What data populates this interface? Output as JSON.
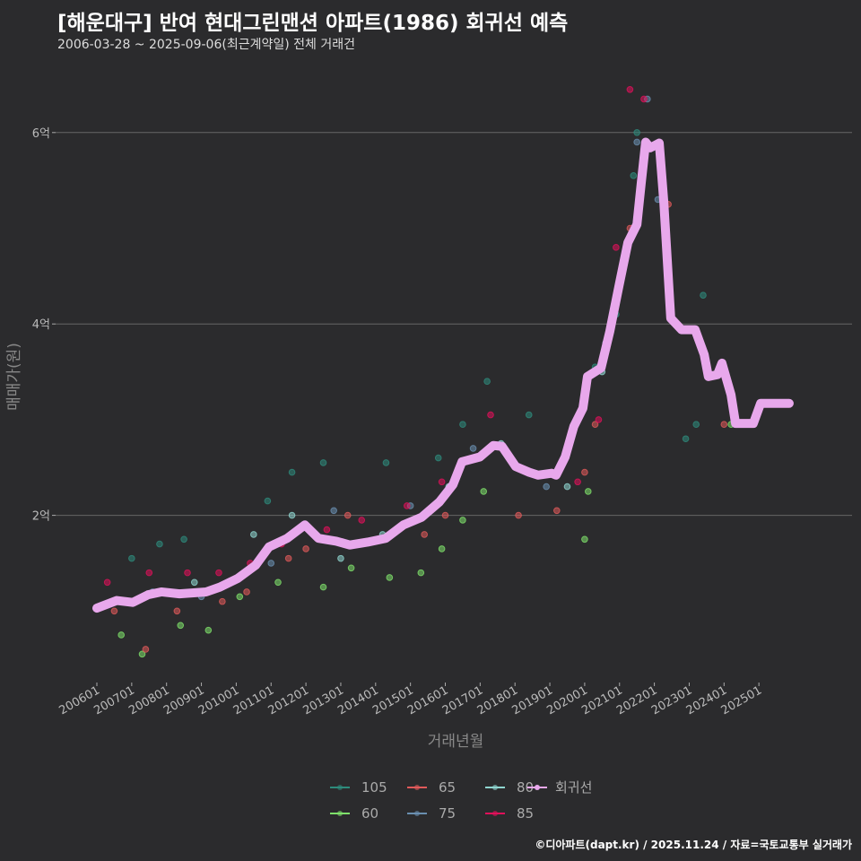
{
  "title": "[해운대구] 반여 현대그린맨션 아파트(1986) 회귀선 예측",
  "subtitle": "2006-03-28 ~ 2025-09-06(최근계약일) 전체 거래건",
  "caption": "©디아파트(dapt.kr) / 2025.11.24 / 자료=국토교통부 실거래가",
  "chart_data": {
    "type": "scatter",
    "xlabel": "거래년월",
    "ylabel": "매매가(원)",
    "xlim": [
      2005.98,
      2028.8
    ],
    "ylim": [
      0,
      6.7
    ],
    "x_ticks": [
      "200601",
      "200701",
      "200801",
      "200901",
      "201001",
      "201101",
      "201201",
      "201301",
      "201401",
      "201501",
      "201601",
      "201701",
      "201801",
      "201901",
      "202001",
      "202101",
      "202201",
      "202301",
      "202401",
      "202501"
    ],
    "y_ticks": [
      {
        "value": 2,
        "label": "2억"
      },
      {
        "value": 4,
        "label": "4억"
      },
      {
        "value": 6,
        "label": "6억"
      }
    ],
    "grid": true,
    "legend_position": "bottom",
    "series": [
      {
        "name": "105",
        "color": "#2e8b7c",
        "points": [
          [
            2007.0,
            1.55
          ],
          [
            2007.8,
            1.7
          ],
          [
            2008.5,
            1.75
          ],
          [
            2010.9,
            2.15
          ],
          [
            2011.6,
            2.45
          ],
          [
            2012.5,
            2.55
          ],
          [
            2014.3,
            2.55
          ],
          [
            2015.8,
            2.6
          ],
          [
            2016.5,
            2.95
          ],
          [
            2017.2,
            3.4
          ],
          [
            2018.4,
            3.05
          ],
          [
            2020.3,
            3.55
          ],
          [
            2020.9,
            4.1
          ],
          [
            2021.4,
            5.55
          ],
          [
            2021.5,
            6.0
          ],
          [
            2023.4,
            4.3
          ],
          [
            2023.2,
            2.95
          ],
          [
            2022.9,
            2.8
          ]
        ]
      },
      {
        "name": "60",
        "color": "#7ee06a",
        "points": [
          [
            2006.7,
            0.75
          ],
          [
            2007.3,
            0.55
          ],
          [
            2008.4,
            0.85
          ],
          [
            2009.2,
            0.8
          ],
          [
            2010.1,
            1.15
          ],
          [
            2011.2,
            1.3
          ],
          [
            2012.5,
            1.25
          ],
          [
            2013.3,
            1.45
          ],
          [
            2014.4,
            1.35
          ],
          [
            2015.3,
            1.4
          ],
          [
            2015.9,
            1.65
          ],
          [
            2016.5,
            1.95
          ],
          [
            2017.1,
            2.25
          ],
          [
            2020.0,
            1.75
          ],
          [
            2020.1,
            2.25
          ],
          [
            2024.2,
            2.95
          ]
        ]
      },
      {
        "name": "65",
        "color": "#e05a5a",
        "points": [
          [
            2006.5,
            1.0
          ],
          [
            2007.4,
            0.6
          ],
          [
            2008.3,
            1.0
          ],
          [
            2009.6,
            1.1
          ],
          [
            2010.3,
            1.2
          ],
          [
            2011.5,
            1.55
          ],
          [
            2012.0,
            1.65
          ],
          [
            2013.2,
            2.0
          ],
          [
            2014.6,
            1.85
          ],
          [
            2015.4,
            1.8
          ],
          [
            2016.0,
            2.0
          ],
          [
            2018.1,
            2.0
          ],
          [
            2019.2,
            2.05
          ],
          [
            2020.0,
            2.45
          ],
          [
            2020.3,
            2.95
          ],
          [
            2021.3,
            5.0
          ],
          [
            2022.4,
            5.25
          ],
          [
            2024.0,
            2.95
          ]
        ]
      },
      {
        "name": "75",
        "color": "#6a8fb0",
        "points": [
          [
            2007.6,
            1.2
          ],
          [
            2009.0,
            1.15
          ],
          [
            2011.0,
            1.5
          ],
          [
            2012.8,
            2.05
          ],
          [
            2015.0,
            2.1
          ],
          [
            2016.8,
            2.7
          ],
          [
            2018.9,
            2.3
          ],
          [
            2020.6,
            3.8
          ],
          [
            2021.5,
            5.9
          ],
          [
            2021.8,
            6.35
          ],
          [
            2022.1,
            5.3
          ]
        ]
      },
      {
        "name": "80",
        "color": "#8fd6d0",
        "points": [
          [
            2008.8,
            1.3
          ],
          [
            2010.5,
            1.8
          ],
          [
            2011.6,
            2.0
          ],
          [
            2013.0,
            1.55
          ],
          [
            2014.2,
            1.8
          ],
          [
            2016.1,
            2.3
          ],
          [
            2017.6,
            2.75
          ],
          [
            2019.5,
            2.3
          ],
          [
            2020.5,
            3.5
          ]
        ]
      },
      {
        "name": "85",
        "color": "#e0105a",
        "points": [
          [
            2006.3,
            1.3
          ],
          [
            2007.5,
            1.4
          ],
          [
            2008.6,
            1.4
          ],
          [
            2009.5,
            1.4
          ],
          [
            2010.4,
            1.5
          ],
          [
            2011.3,
            1.7
          ],
          [
            2012.6,
            1.85
          ],
          [
            2013.6,
            1.95
          ],
          [
            2014.9,
            2.1
          ],
          [
            2015.9,
            2.35
          ],
          [
            2017.3,
            3.05
          ],
          [
            2019.8,
            2.35
          ],
          [
            2020.4,
            3.0
          ],
          [
            2020.9,
            4.8
          ],
          [
            2021.3,
            6.45
          ],
          [
            2021.7,
            6.35
          ],
          [
            2021.4,
            5.0
          ]
        ]
      }
    ],
    "regression": {
      "name": "회귀선",
      "color": "#e8a8ec",
      "points": [
        [
          2006.0,
          1.03
        ],
        [
          2006.57,
          1.11
        ],
        [
          2007.03,
          1.09
        ],
        [
          2007.47,
          1.17
        ],
        [
          2007.85,
          1.2
        ],
        [
          2008.37,
          1.18
        ],
        [
          2009.14,
          1.2
        ],
        [
          2009.53,
          1.25
        ],
        [
          2010.04,
          1.34
        ],
        [
          2010.56,
          1.48
        ],
        [
          2010.94,
          1.67
        ],
        [
          2011.46,
          1.76
        ],
        [
          2011.97,
          1.9
        ],
        [
          2012.36,
          1.76
        ],
        [
          2012.87,
          1.73
        ],
        [
          2013.26,
          1.69
        ],
        [
          2013.77,
          1.72
        ],
        [
          2014.29,
          1.76
        ],
        [
          2014.8,
          1.9
        ],
        [
          2015.32,
          1.98
        ],
        [
          2015.83,
          2.14
        ],
        [
          2016.22,
          2.32
        ],
        [
          2016.48,
          2.56
        ],
        [
          2016.99,
          2.61
        ],
        [
          2017.38,
          2.73
        ],
        [
          2017.63,
          2.72
        ],
        [
          2018.02,
          2.51
        ],
        [
          2018.41,
          2.45
        ],
        [
          2018.66,
          2.42
        ],
        [
          2019.05,
          2.44
        ],
        [
          2019.18,
          2.42
        ],
        [
          2019.44,
          2.61
        ],
        [
          2019.69,
          2.93
        ],
        [
          2019.95,
          3.12
        ],
        [
          2020.08,
          3.45
        ],
        [
          2020.47,
          3.54
        ],
        [
          2020.72,
          3.92
        ],
        [
          2020.98,
          4.39
        ],
        [
          2021.24,
          4.85
        ],
        [
          2021.5,
          5.04
        ],
        [
          2021.62,
          5.46
        ],
        [
          2021.75,
          5.9
        ],
        [
          2021.88,
          5.84
        ],
        [
          2022.14,
          5.89
        ],
        [
          2022.27,
          5.28
        ],
        [
          2022.47,
          4.06
        ],
        [
          2022.78,
          3.94
        ],
        [
          2023.17,
          3.94
        ],
        [
          2023.43,
          3.68
        ],
        [
          2023.55,
          3.45
        ],
        [
          2023.81,
          3.47
        ],
        [
          2023.94,
          3.59
        ],
        [
          2024.2,
          3.26
        ],
        [
          2024.33,
          2.96
        ],
        [
          2024.84,
          2.96
        ],
        [
          2025.05,
          3.17
        ],
        [
          2025.87,
          3.17
        ]
      ]
    }
  }
}
